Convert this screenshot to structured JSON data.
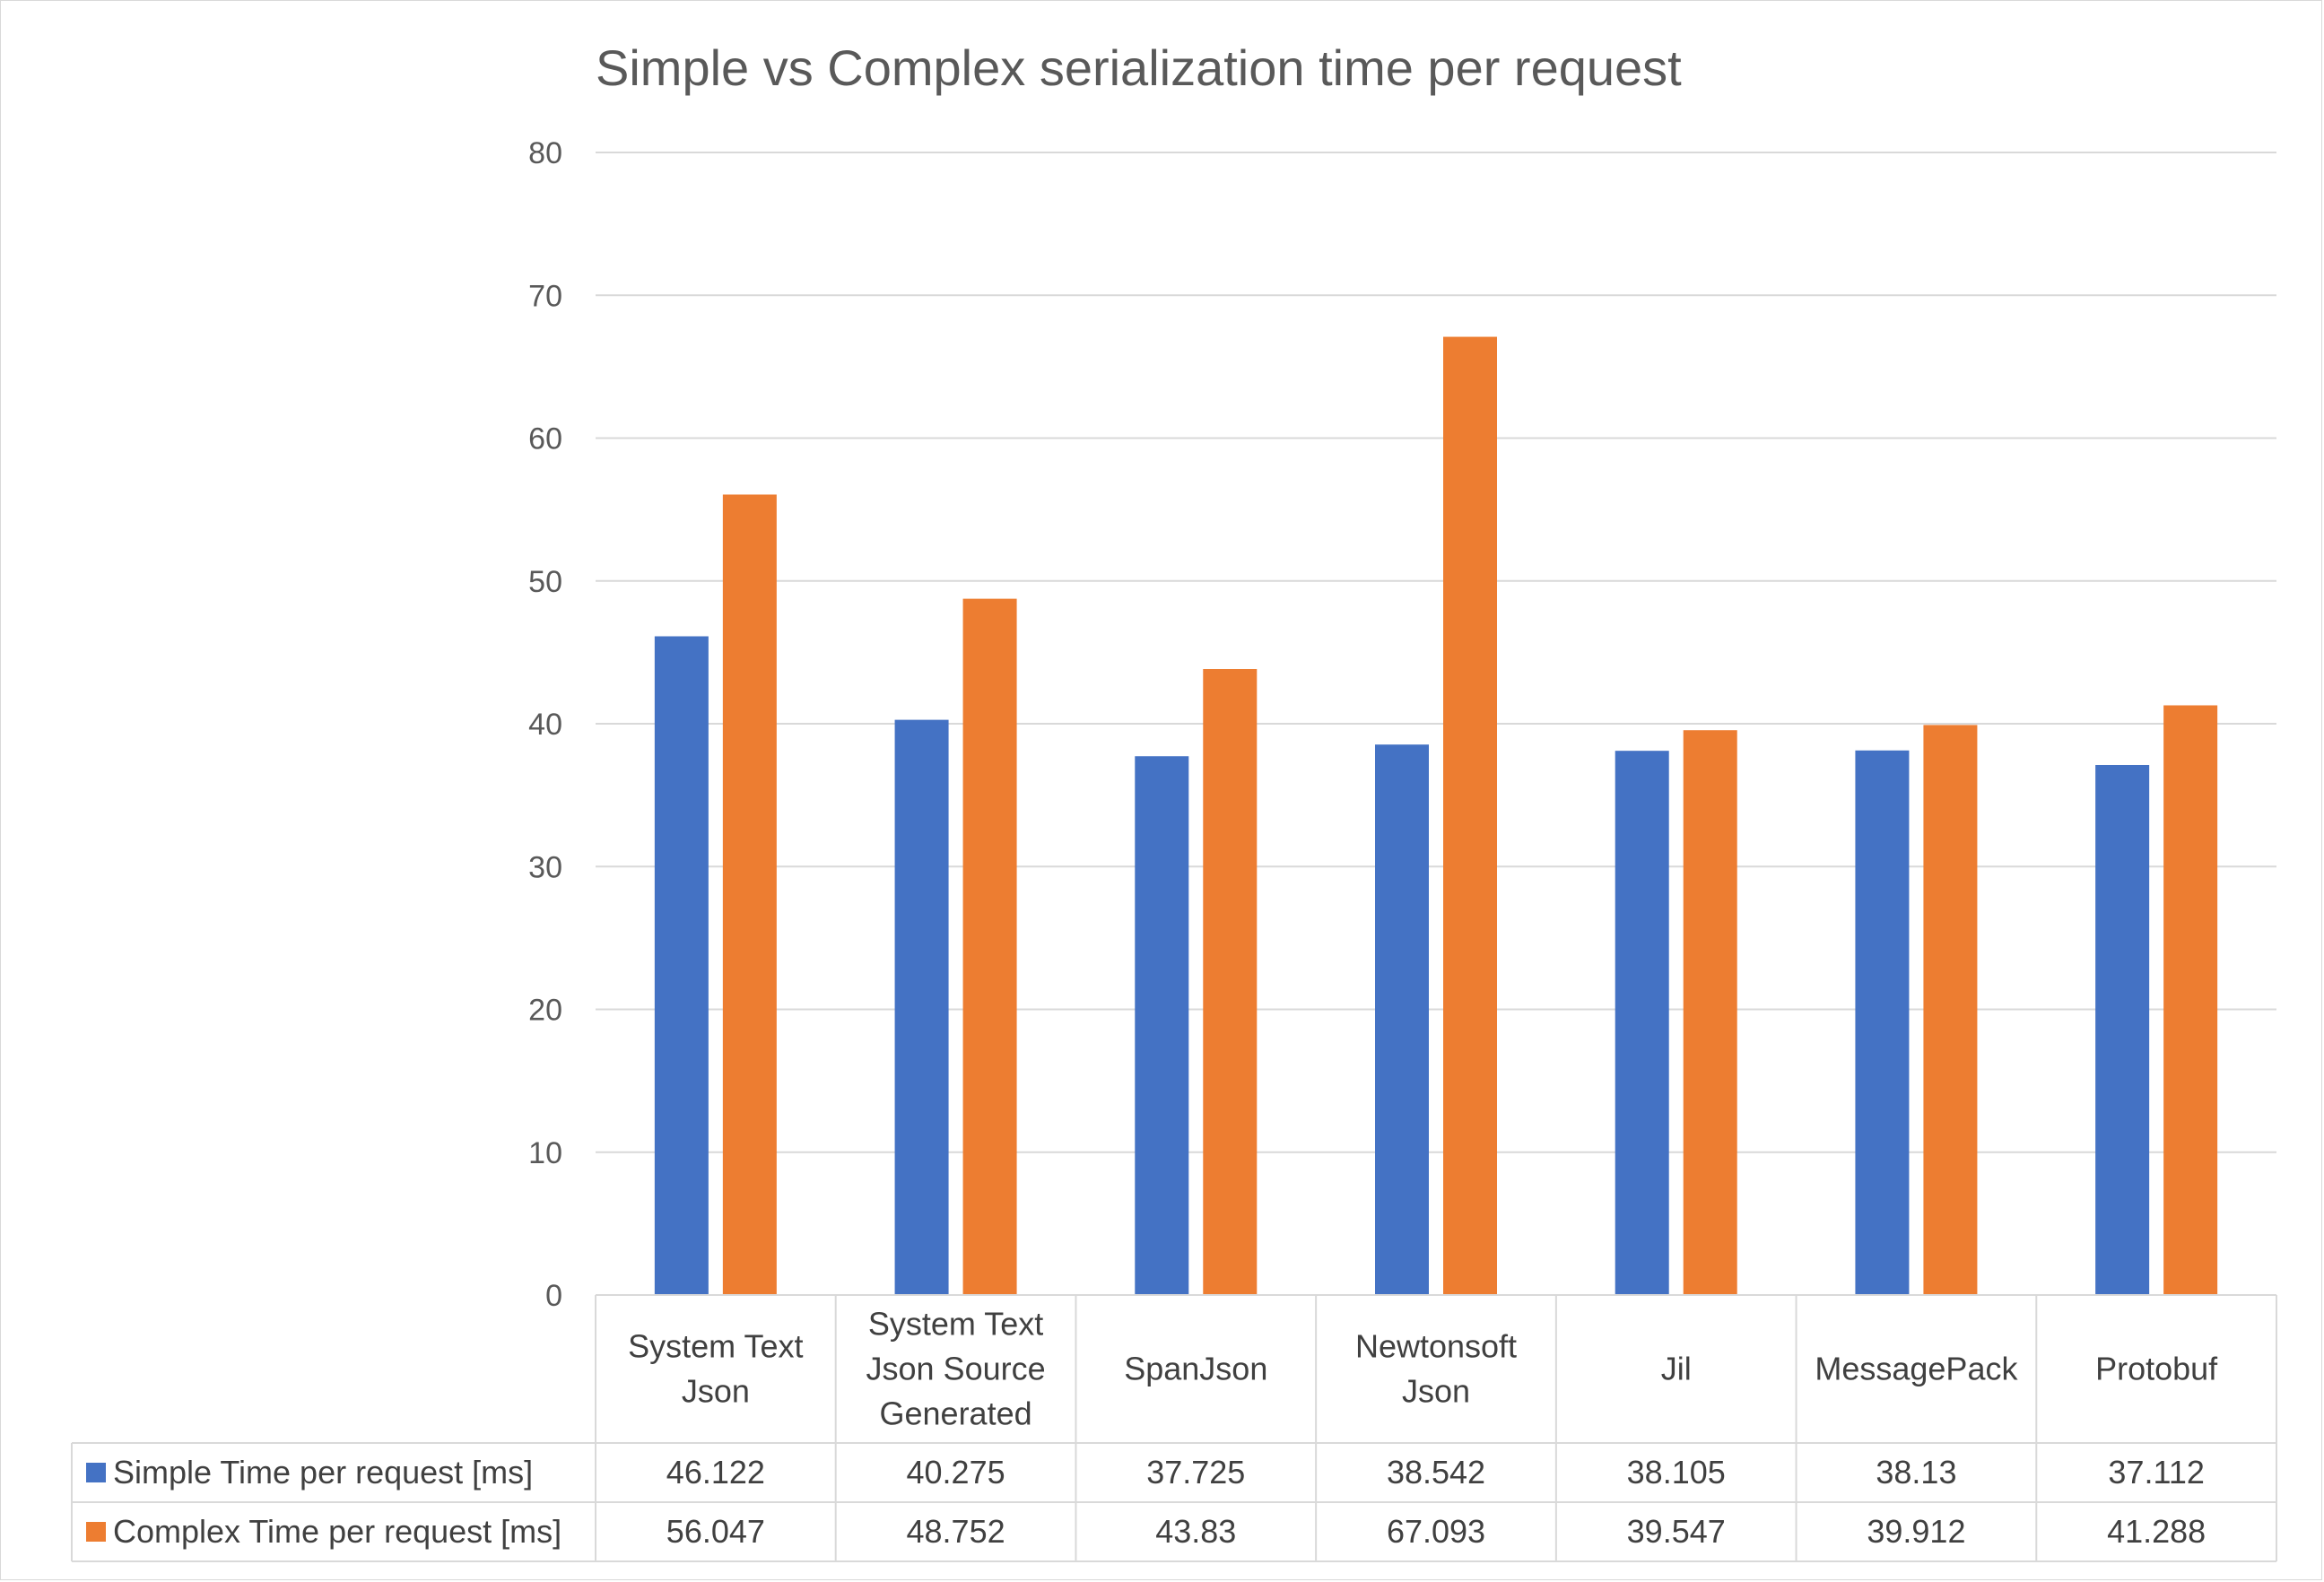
{
  "chart_data": {
    "type": "bar",
    "title": "Simple vs Complex serialization time per request",
    "categories": [
      [
        "System Text",
        "Json"
      ],
      [
        "System Text",
        "Json Source",
        "Generated"
      ],
      [
        "SpanJson"
      ],
      [
        "Newtonsoft",
        "Json"
      ],
      [
        "Jil"
      ],
      [
        "MessagePack"
      ],
      [
        "Protobuf"
      ]
    ],
    "series": [
      {
        "name": "Simple Time per request [ms]",
        "color": "#4472c4",
        "values": [
          46.122,
          40.275,
          37.725,
          38.542,
          38.105,
          38.13,
          37.112
        ],
        "labels": [
          "46.122",
          "40.275",
          "37.725",
          "38.542",
          "38.105",
          "38.13",
          "37.112"
        ]
      },
      {
        "name": "Complex Time per request [ms]",
        "color": "#ed7d31",
        "values": [
          56.047,
          48.752,
          43.83,
          67.093,
          39.547,
          39.912,
          41.288
        ],
        "labels": [
          "56.047",
          "48.752",
          "43.83",
          "67.093",
          "39.547",
          "39.912",
          "41.288"
        ]
      }
    ],
    "ylim": [
      0,
      80
    ],
    "yticks": [
      "0",
      "10",
      "20",
      "30",
      "40",
      "50",
      "60",
      "70",
      "80"
    ],
    "grid": true,
    "legend": "data-table"
  }
}
